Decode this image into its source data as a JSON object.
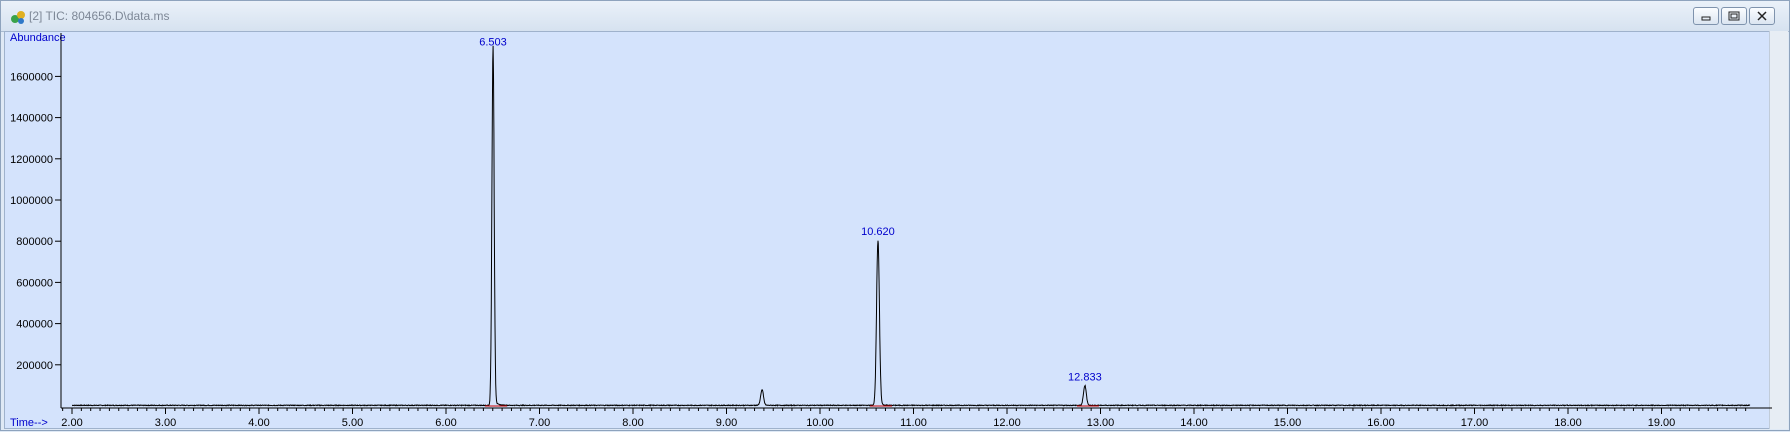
{
  "window": {
    "title": "[2] TIC: 804656.D\\data.ms"
  },
  "colors": {
    "background": "#d4e3fc",
    "trace": "#000000",
    "baseline": "#cc0000",
    "label": "#0000cc"
  },
  "icons": {
    "app": "chemstation-app-icon",
    "minimize": "minimize-icon",
    "restore": "restore-icon",
    "close": "close-icon"
  },
  "chart_data": {
    "type": "line",
    "ylabel": "Abundance",
    "xlabel": "Time-->",
    "xlim": [
      1.9,
      20.0
    ],
    "ylim": [
      0,
      1800000
    ],
    "x_ticks": [
      "2.00",
      "3.00",
      "4.00",
      "5.00",
      "6.00",
      "7.00",
      "8.00",
      "9.00",
      "10.00",
      "11.00",
      "12.00",
      "13.00",
      "14.00",
      "15.00",
      "16.00",
      "17.00",
      "18.00",
      "19.00"
    ],
    "y_ticks": [
      "200000",
      "400000",
      "600000",
      "800000",
      "1000000",
      "1200000",
      "1400000",
      "1600000"
    ],
    "peaks": [
      {
        "rt": 6.503,
        "height": 1720000,
        "label": "6.503",
        "labeled": true
      },
      {
        "rt": 9.38,
        "height": 75000,
        "label": "",
        "labeled": false
      },
      {
        "rt": 10.62,
        "height": 800000,
        "label": "10.620",
        "labeled": true
      },
      {
        "rt": 12.833,
        "height": 95000,
        "label": "12.833",
        "labeled": true
      }
    ],
    "grid": false,
    "legend": "none"
  }
}
